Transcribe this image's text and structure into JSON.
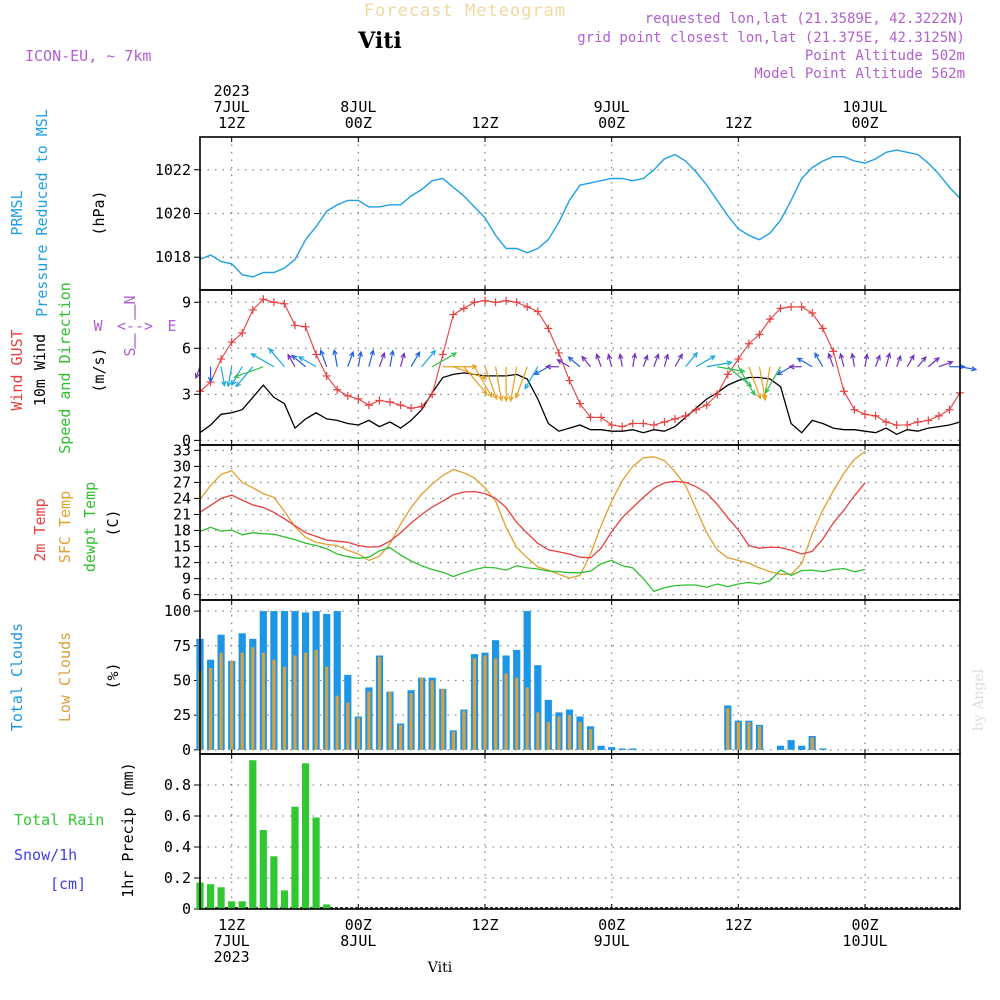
{
  "header": {
    "title": "Forecast Meteogram",
    "station": "Viti",
    "model": "ICON-EU, ~ 7km",
    "requested": "requested lon,lat (21.3589E, 42.3222N)",
    "gridpoint": "grid point closest lon,lat (21.375E, 42.3125N)",
    "point_alt": "Point Altitude 502m",
    "model_alt": "Model Point Altitude 562m"
  },
  "footer": {
    "station": "Viti",
    "signature": "by Angel"
  },
  "time_axis": {
    "start_hour": 9,
    "end_hour": 81,
    "top_labels": [
      {
        "hour": 12,
        "lines": [
          "2023",
          "7JUL",
          "12Z"
        ]
      },
      {
        "hour": 24,
        "lines": [
          "8JUL",
          "00Z"
        ]
      },
      {
        "hour": 36,
        "lines": [
          "12Z"
        ]
      },
      {
        "hour": 48,
        "lines": [
          "9JUL",
          "00Z"
        ]
      },
      {
        "hour": 60,
        "lines": [
          "12Z"
        ]
      },
      {
        "hour": 72,
        "lines": [
          "10JUL",
          "00Z"
        ]
      }
    ],
    "bottom_labels": [
      {
        "hour": 12,
        "lines": [
          "12Z",
          "7JUL",
          "2023"
        ]
      },
      {
        "hour": 24,
        "lines": [
          "00Z",
          "8JUL"
        ]
      },
      {
        "hour": 36,
        "lines": [
          "12Z"
        ]
      },
      {
        "hour": 48,
        "lines": [
          "00Z",
          "9JUL"
        ]
      },
      {
        "hour": 60,
        "lines": [
          "12Z"
        ]
      },
      {
        "hour": 72,
        "lines": [
          "00Z",
          "10JUL"
        ]
      }
    ]
  },
  "colors": {
    "pressure": "#1fa0e6",
    "gust": "#e84040",
    "wind": "#000000",
    "temp2m": "#e84040",
    "sfc": "#e0a030",
    "dewpt": "#30c030",
    "total_cloud": "#1e96e6",
    "low_cloud": "#d8a040",
    "rain": "#30c830",
    "snow": "#4040e0",
    "grid": "#888888",
    "compass": "#b060d0"
  },
  "chart_data": [
    {
      "id": "pressure",
      "type": "line",
      "ylabels": [
        "PRMSL",
        "Pressure Reduced to MSL"
      ],
      "unit": "(hPa)",
      "ylim": [
        1016.5,
        1023.5
      ],
      "yticks": [
        1018,
        1020,
        1022
      ],
      "x": [
        9,
        10,
        11,
        12,
        13,
        14,
        15,
        16,
        17,
        18,
        19,
        20,
        21,
        22,
        23,
        24,
        25,
        26,
        27,
        28,
        29,
        30,
        31,
        32,
        33,
        34,
        35,
        36,
        37,
        38,
        39,
        40,
        41,
        42,
        43,
        44,
        45,
        46,
        47,
        48,
        49,
        50,
        51,
        52,
        53,
        54,
        55,
        56,
        57,
        58,
        59,
        60,
        61,
        62,
        63,
        64,
        65,
        66,
        67,
        68,
        69,
        70,
        71,
        72,
        73,
        74,
        75,
        76,
        77,
        78,
        79,
        80,
        81
      ],
      "values": [
        1017.9,
        1018.1,
        1017.8,
        1017.7,
        1017.2,
        1017.1,
        1017.3,
        1017.3,
        1017.5,
        1017.9,
        1018.8,
        1019.4,
        1020.1,
        1020.4,
        1020.6,
        1020.6,
        1020.3,
        1020.3,
        1020.4,
        1020.4,
        1020.8,
        1021.1,
        1021.5,
        1021.6,
        1021.2,
        1020.8,
        1020.3,
        1019.8,
        1019.0,
        1018.4,
        1018.4,
        1018.2,
        1018.4,
        1018.8,
        1019.6,
        1020.6,
        1021.3,
        1021.4,
        1021.5,
        1021.6,
        1021.6,
        1021.5,
        1021.6,
        1022.0,
        1022.5,
        1022.7,
        1022.4,
        1021.9,
        1021.3,
        1020.6,
        1019.9,
        1019.3,
        1019.0,
        1018.8,
        1019.1,
        1019.7,
        1020.6,
        1021.6,
        1022.1,
        1022.4,
        1022.6,
        1022.6,
        1022.4,
        1022.3,
        1022.5,
        1022.8,
        1022.9,
        1022.8,
        1022.7,
        1022.3,
        1021.8,
        1021.2,
        1020.7
      ]
    },
    {
      "id": "wind",
      "type": "line",
      "ylabels": [
        "Wind GUST",
        "10m Wind",
        "Speed and Direction"
      ],
      "unit": "(m/s)",
      "ylim": [
        -0.3,
        9.8
      ],
      "yticks": [
        0,
        3,
        6,
        9
      ],
      "compass": {
        "n": "N",
        "s": "S",
        "w": "W",
        "e": "E",
        "h": "<-->",
        "v": "|"
      },
      "x": [
        9,
        10,
        11,
        12,
        13,
        14,
        15,
        16,
        17,
        18,
        19,
        20,
        21,
        22,
        23,
        24,
        25,
        26,
        27,
        28,
        29,
        30,
        31,
        32,
        33,
        34,
        35,
        36,
        37,
        38,
        39,
        40,
        41,
        42,
        43,
        44,
        45,
        46,
        47,
        48,
        49,
        50,
        51,
        52,
        53,
        54,
        55,
        56,
        57,
        58,
        59,
        60,
        61,
        62,
        63,
        64,
        65,
        66,
        67,
        68,
        69,
        70,
        71,
        72,
        73,
        74,
        75,
        76,
        77,
        78,
        79,
        80,
        81
      ],
      "gust": [
        3.2,
        3.8,
        5.3,
        6.4,
        7.0,
        8.5,
        9.2,
        9.0,
        8.9,
        7.5,
        7.4,
        5.6,
        4.2,
        3.3,
        2.9,
        2.7,
        2.3,
        2.6,
        2.5,
        2.3,
        2.1,
        2.2,
        3.0,
        5.6,
        8.2,
        8.6,
        9.0,
        9.1,
        9.0,
        9.1,
        9.0,
        8.7,
        8.4,
        7.3,
        5.7,
        3.9,
        2.4,
        1.5,
        1.5,
        1.0,
        0.9,
        1.1,
        1.1,
        1.0,
        1.2,
        1.4,
        1.6,
        2.0,
        2.3,
        3.0,
        4.3,
        5.3,
        6.3,
        6.9,
        7.9,
        8.6,
        8.7,
        8.7,
        8.3,
        7.3,
        5.8,
        3.2,
        2.0,
        1.7,
        1.6,
        1.2,
        1.0,
        1.0,
        1.2,
        1.3,
        1.6,
        2.0,
        3.1
      ],
      "speed": [
        0.5,
        1.0,
        1.7,
        1.8,
        2.0,
        2.8,
        3.6,
        2.8,
        2.4,
        0.8,
        1.4,
        1.8,
        1.4,
        1.3,
        1.1,
        1.0,
        1.3,
        0.9,
        1.2,
        0.8,
        1.3,
        2.0,
        3.1,
        4.1,
        4.3,
        4.4,
        4.3,
        4.2,
        4.2,
        4.2,
        4.3,
        4.0,
        2.7,
        1.1,
        0.6,
        0.8,
        1.0,
        0.7,
        0.7,
        0.6,
        0.6,
        0.7,
        0.5,
        0.7,
        0.6,
        0.9,
        1.5,
        2.1,
        2.7,
        3.1,
        3.6,
        3.9,
        4.1,
        4.1,
        4.0,
        3.5,
        1.1,
        0.5,
        1.3,
        1.1,
        0.8,
        0.7,
        0.7,
        0.6,
        0.5,
        0.8,
        0.4,
        0.7,
        0.6,
        0.8,
        0.9,
        1.0,
        1.2
      ],
      "wind_to": [
        200,
        180,
        170,
        190,
        210,
        220,
        250,
        300,
        320,
        330,
        310,
        300,
        340,
        350,
        20,
        10,
        15,
        20,
        10,
        15,
        30,
        40,
        60,
        90,
        110,
        140,
        150,
        160,
        170,
        180,
        190,
        200,
        210,
        240,
        270,
        300,
        310,
        320,
        340,
        345,
        350,
        10,
        20,
        20,
        15,
        30,
        40,
        60,
        80,
        100,
        130,
        150,
        160,
        170,
        190,
        210,
        240,
        270,
        300,
        330,
        340,
        345,
        350,
        10,
        20,
        15,
        20,
        30,
        40,
        50,
        70,
        90,
        100
      ]
    },
    {
      "id": "temperature",
      "type": "line",
      "ylabels": [
        "2m Temp",
        "SFC Temp",
        "dewpt Temp"
      ],
      "unit": "(C)",
      "ylim": [
        5,
        34
      ],
      "yticks": [
        6,
        9,
        12,
        15,
        18,
        21,
        24,
        27,
        30,
        33
      ],
      "x": [
        9,
        10,
        11,
        12,
        13,
        14,
        15,
        16,
        17,
        18,
        19,
        20,
        21,
        22,
        23,
        24,
        25,
        26,
        27,
        28,
        29,
        30,
        31,
        32,
        33,
        34,
        35,
        36,
        37,
        38,
        39,
        40,
        41,
        42,
        43,
        44,
        45,
        46,
        47,
        48,
        49,
        50,
        51,
        52,
        53,
        54,
        55,
        56,
        57,
        58,
        59,
        60,
        61,
        62,
        63,
        64,
        65,
        66,
        67,
        68,
        69,
        70,
        71,
        72,
        73,
        74,
        75,
        76,
        77,
        78,
        79,
        80,
        81
      ],
      "temp2m": [
        21.4,
        22.7,
        24.0,
        24.6,
        23.7,
        22.8,
        22.3,
        21.4,
        20.2,
        18.9,
        17.6,
        16.9,
        16.2,
        16.0,
        15.8,
        15.2,
        14.9,
        15.0,
        16.0,
        17.6,
        19.4,
        21.0,
        22.4,
        23.5,
        24.7,
        25.2,
        25.3,
        24.9,
        24.0,
        22.3,
        19.5,
        17.5,
        15.6,
        14.4,
        14.0,
        13.6,
        13.0,
        12.9,
        14.7,
        17.8,
        20.4,
        22.3,
        24.2,
        25.9,
        26.9,
        27.2,
        27.0,
        26.2,
        25.0,
        22.9,
        20.4,
        18.1,
        15.2,
        14.7,
        14.9,
        14.8,
        14.3,
        13.6,
        14.1,
        16.4,
        19.4,
        21.8,
        24.5,
        26.9
      ],
      "sfc": [
        23.8,
        26.4,
        28.5,
        29.2,
        27.0,
        26.0,
        24.9,
        24.2,
        21.6,
        18.7,
        16.7,
        15.8,
        15.4,
        15.2,
        14.3,
        13.6,
        12.4,
        13.2,
        15.5,
        19.2,
        22.3,
        24.8,
        26.7,
        28.3,
        29.4,
        28.8,
        27.8,
        26.0,
        23.5,
        18.6,
        14.8,
        12.9,
        11.2,
        10.6,
        9.8,
        9.1,
        9.6,
        13.6,
        18.9,
        23.5,
        27.3,
        30.0,
        31.6,
        31.8,
        31.1,
        29.0,
        26.4,
        22.0,
        17.6,
        14.4,
        12.9,
        12.4,
        11.9,
        11.0,
        10.3,
        9.8,
        9.8,
        11.8,
        17.4,
        21.8,
        25.4,
        28.7,
        31.3,
        32.8
      ],
      "dewpt": [
        17.8,
        18.6,
        17.9,
        18.1,
        17.2,
        17.6,
        17.4,
        17.3,
        16.8,
        16.3,
        15.6,
        15.2,
        14.6,
        13.6,
        13.1,
        12.8,
        13.0,
        14.2,
        14.8,
        13.4,
        12.3,
        11.4,
        10.7,
        10.2,
        9.4,
        10.1,
        10.7,
        11.1,
        11.0,
        10.6,
        11.4,
        11.0,
        10.8,
        10.4,
        10.3,
        10.1,
        10.1,
        10.4,
        11.8,
        12.4,
        11.4,
        11.0,
        9.0,
        6.6,
        7.3,
        7.7,
        7.8,
        7.8,
        7.4,
        8.0,
        7.5,
        8.0,
        8.3,
        8.0,
        8.6,
        10.6,
        9.6,
        10.5,
        10.6,
        10.3,
        10.7,
        10.9,
        10.3,
        10.7
      ],
      "x2": [
        9,
        10,
        11,
        12,
        13,
        14,
        15,
        16,
        17,
        18,
        19,
        20,
        21,
        22,
        23,
        24,
        25,
        26,
        27,
        28,
        29,
        30,
        31,
        32,
        33,
        34,
        35,
        36,
        37,
        38,
        39,
        40,
        41,
        42,
        43,
        44,
        45,
        46,
        47,
        48,
        49,
        50,
        51,
        52,
        53,
        54,
        55,
        56,
        57,
        58,
        59,
        60,
        61,
        62,
        63,
        64,
        65,
        66,
        67,
        68,
        69,
        70,
        71,
        72
      ]
    },
    {
      "id": "clouds",
      "type": "bar",
      "ylabels": [
        "Total Clouds",
        "Low Clouds"
      ],
      "unit": "(%)",
      "ylim": [
        -3,
        108
      ],
      "yticks": [
        0,
        25,
        50,
        75,
        100
      ],
      "x": [
        9,
        10,
        11,
        12,
        13,
        14,
        15,
        16,
        17,
        18,
        19,
        20,
        21,
        22,
        23,
        24,
        25,
        26,
        27,
        28,
        29,
        30,
        31,
        32,
        33,
        34,
        35,
        36,
        37,
        38,
        39,
        40,
        41,
        42,
        43,
        44,
        45,
        46,
        47,
        48,
        49,
        50,
        51,
        52,
        53,
        54,
        55,
        56,
        57,
        58,
        59,
        60,
        61,
        62,
        63,
        64,
        65,
        66,
        67,
        68,
        69,
        70,
        71,
        72,
        73,
        74,
        75,
        76,
        77,
        78,
        79,
        80,
        81
      ],
      "total": [
        80,
        65,
        83,
        64,
        84,
        80,
        100,
        100,
        100,
        100,
        99,
        100,
        98,
        100,
        54,
        24,
        45,
        68,
        42,
        19,
        43,
        52,
        52,
        44,
        14,
        29,
        69,
        70,
        79,
        68,
        72,
        100,
        61,
        36,
        27,
        29,
        24,
        17,
        3,
        2,
        1,
        1,
        0,
        0,
        0,
        0,
        0,
        0,
        0,
        0,
        32,
        21,
        21,
        18,
        0,
        3,
        7,
        3,
        10,
        1,
        0,
        0,
        0,
        0,
        0,
        0,
        0,
        0,
        0,
        0,
        0,
        0,
        0
      ],
      "low": [
        57,
        59,
        70,
        64,
        70,
        74,
        70,
        65,
        60,
        68,
        70,
        72,
        60,
        39,
        34,
        23,
        42,
        67,
        42,
        18,
        41,
        52,
        50,
        44,
        13,
        28,
        66,
        68,
        66,
        55,
        52,
        45,
        27,
        20,
        24,
        25,
        20,
        15,
        0,
        0,
        0,
        0,
        0,
        0,
        0,
        0,
        0,
        0,
        0,
        0,
        30,
        20,
        20,
        17,
        0,
        0,
        0,
        0,
        9,
        0,
        0,
        0,
        0,
        0,
        0,
        0,
        0,
        0,
        0,
        0,
        0,
        0,
        0
      ]
    },
    {
      "id": "precip",
      "type": "bar",
      "ylabels": [
        "Total  Rain",
        "Snow/1h",
        "[cm]"
      ],
      "unit": "1hr Precip (mm)",
      "ylim": [
        0,
        1.0
      ],
      "yticks": [
        0,
        0.2,
        0.4,
        0.6,
        0.8
      ],
      "yticklabels": [
        "0",
        "0.2",
        "0.4",
        "0.6",
        "0.8"
      ],
      "x": [
        9,
        10,
        11,
        12,
        13,
        14,
        15,
        16,
        17,
        18,
        19,
        20,
        21,
        22
      ],
      "rain": [
        0.17,
        0.16,
        0.14,
        0.05,
        0.05,
        0.96,
        0.51,
        0.34,
        0.12,
        0.66,
        0.94,
        0.59,
        0.03,
        0
      ]
    }
  ]
}
